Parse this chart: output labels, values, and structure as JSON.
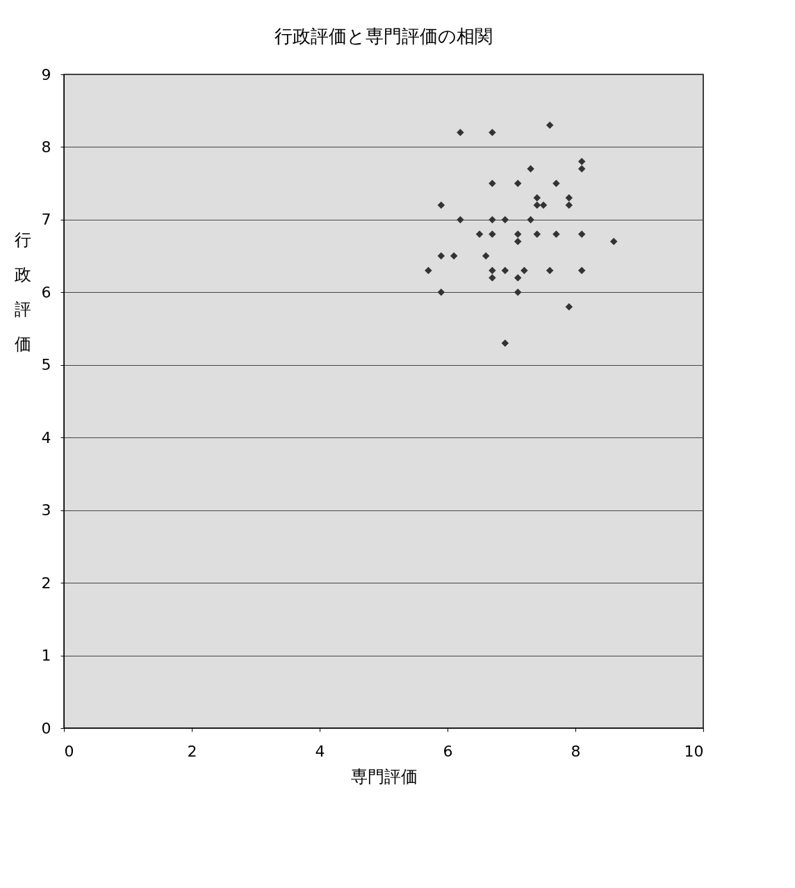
{
  "chart_data": {
    "type": "scatter",
    "title": "行政評価と専門評価の相関",
    "xlabel": "専門評価",
    "ylabel": "行政評価",
    "x": [
      6.2,
      6.7,
      7.6,
      8.1,
      8.1,
      7.3,
      6.7,
      7.1,
      7.7,
      7.4,
      7.4,
      7.5,
      7.9,
      7.9,
      5.9,
      6.2,
      6.7,
      6.9,
      7.3,
      6.5,
      6.7,
      7.1,
      7.1,
      7.4,
      7.7,
      8.1,
      8.6,
      5.9,
      6.1,
      6.6,
      5.7,
      6.7,
      6.9,
      7.2,
      6.7,
      7.1,
      7.6,
      8.1,
      5.9,
      7.1,
      7.9,
      6.9
    ],
    "values": [
      8.2,
      8.2,
      8.3,
      7.8,
      7.7,
      7.7,
      7.5,
      7.5,
      7.5,
      7.3,
      7.2,
      7.2,
      7.3,
      7.2,
      7.2,
      7.0,
      7.0,
      7.0,
      7.0,
      6.8,
      6.8,
      6.8,
      6.7,
      6.8,
      6.8,
      6.8,
      6.7,
      6.5,
      6.5,
      6.5,
      6.3,
      6.3,
      6.3,
      6.3,
      6.2,
      6.2,
      6.3,
      6.3,
      6.0,
      6.0,
      5.8,
      5.3
    ],
    "color": "#333333",
    "marker": "diamond",
    "xlim": [
      0,
      10
    ],
    "xticks": [
      0,
      2,
      4,
      6,
      8,
      10
    ],
    "ylim": [
      0,
      9
    ],
    "yticks": [
      0,
      1,
      2,
      3,
      4,
      5,
      6,
      7,
      8,
      9
    ],
    "grid": "y"
  }
}
